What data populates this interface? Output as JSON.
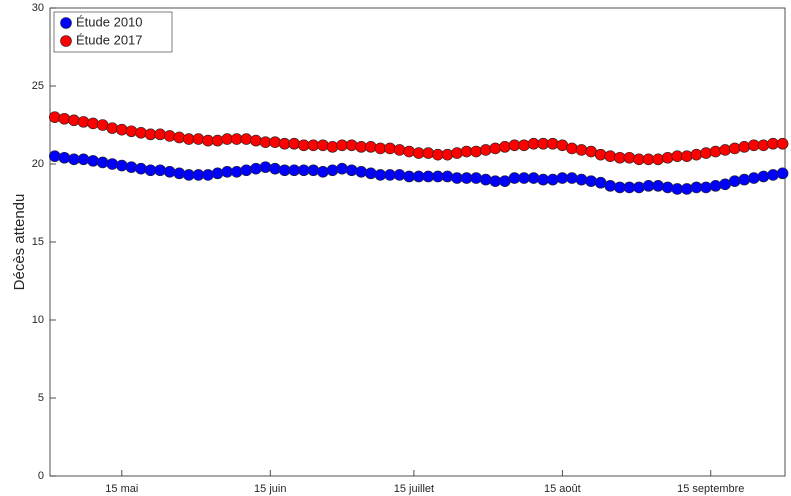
{
  "chart_data": {
    "type": "scatter",
    "ylabel": "Décès attendu",
    "xlim": [
      120,
      273.5
    ],
    "ylim": [
      0,
      30
    ],
    "xticks": [
      {
        "value": 135,
        "label": "15 mai"
      },
      {
        "value": 166,
        "label": "15 juin"
      },
      {
        "value": 196,
        "label": "15 juillet"
      },
      {
        "value": 227,
        "label": "15 août"
      },
      {
        "value": 258,
        "label": "15 septembre"
      }
    ],
    "yticks": [
      0,
      5,
      10,
      15,
      20,
      25,
      30
    ],
    "grid": false,
    "legend": "upper-left",
    "x": [
      121,
      123,
      125,
      127,
      129,
      131,
      133,
      135,
      137,
      139,
      141,
      143,
      145,
      147,
      149,
      151,
      153,
      155,
      157,
      159,
      161,
      163,
      165,
      167,
      169,
      171,
      173,
      175,
      177,
      179,
      181,
      183,
      185,
      187,
      189,
      191,
      193,
      195,
      197,
      199,
      201,
      203,
      205,
      207,
      209,
      211,
      213,
      215,
      217,
      219,
      221,
      223,
      225,
      227,
      229,
      231,
      233,
      235,
      237,
      239,
      241,
      243,
      245,
      247,
      249,
      251,
      253,
      255,
      257,
      259,
      261,
      263,
      265,
      267,
      269,
      271,
      273
    ],
    "series": [
      {
        "name": "Étude 2010",
        "color": "#0000ff",
        "values": [
          20.5,
          20.4,
          20.3,
          20.3,
          20.2,
          20.1,
          20.0,
          19.9,
          19.8,
          19.7,
          19.6,
          19.6,
          19.5,
          19.4,
          19.3,
          19.3,
          19.3,
          19.4,
          19.5,
          19.5,
          19.6,
          19.7,
          19.8,
          19.7,
          19.6,
          19.6,
          19.6,
          19.6,
          19.5,
          19.6,
          19.7,
          19.6,
          19.5,
          19.4,
          19.3,
          19.3,
          19.3,
          19.2,
          19.2,
          19.2,
          19.2,
          19.2,
          19.1,
          19.1,
          19.1,
          19.0,
          18.9,
          18.9,
          19.1,
          19.1,
          19.1,
          19.0,
          19.0,
          19.1,
          19.1,
          19.0,
          18.9,
          18.8,
          18.6,
          18.5,
          18.5,
          18.5,
          18.6,
          18.6,
          18.5,
          18.4,
          18.4,
          18.5,
          18.5,
          18.6,
          18.7,
          18.9,
          19.0,
          19.1,
          19.2,
          19.3,
          19.4
        ]
      },
      {
        "name": "Étude 2017",
        "color": "#ff0000",
        "values": [
          23.0,
          22.9,
          22.8,
          22.7,
          22.6,
          22.5,
          22.3,
          22.2,
          22.1,
          22.0,
          21.9,
          21.9,
          21.8,
          21.7,
          21.6,
          21.6,
          21.5,
          21.5,
          21.6,
          21.6,
          21.6,
          21.5,
          21.4,
          21.4,
          21.3,
          21.3,
          21.2,
          21.2,
          21.2,
          21.1,
          21.2,
          21.2,
          21.1,
          21.1,
          21.0,
          21.0,
          20.9,
          20.8,
          20.7,
          20.7,
          20.6,
          20.6,
          20.7,
          20.8,
          20.8,
          20.9,
          21.0,
          21.1,
          21.2,
          21.2,
          21.3,
          21.3,
          21.3,
          21.2,
          21.0,
          20.9,
          20.8,
          20.6,
          20.5,
          20.4,
          20.4,
          20.3,
          20.3,
          20.3,
          20.4,
          20.5,
          20.5,
          20.6,
          20.7,
          20.8,
          20.9,
          21.0,
          21.1,
          21.2,
          21.2,
          21.3,
          21.3
        ]
      }
    ]
  }
}
